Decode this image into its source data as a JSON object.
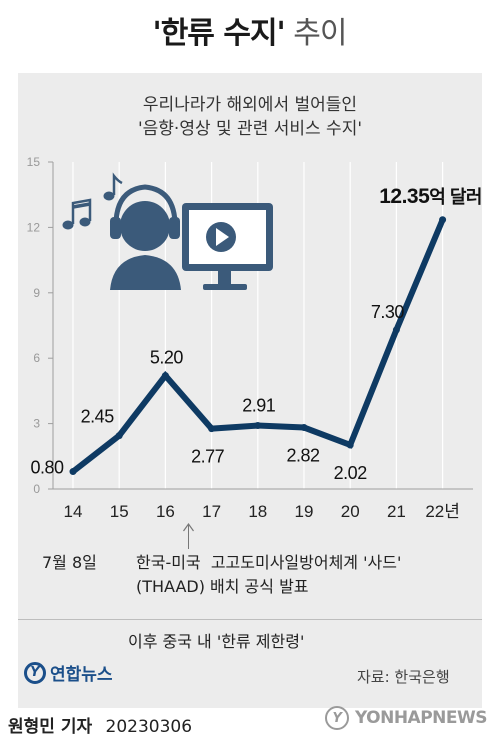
{
  "title": {
    "bold": "'한류 수지'",
    "light": "추이"
  },
  "chart_data": {
    "type": "line",
    "subtitle_lines": [
      "우리나라가 해외에서 벌어들인",
      "'음향·영상 및 관련 서비스 수지'"
    ],
    "categories": [
      "14",
      "15",
      "16",
      "17",
      "18",
      "19",
      "20",
      "21",
      "22년"
    ],
    "values": [
      0.8,
      2.45,
      5.2,
      2.77,
      2.91,
      2.82,
      2.02,
      7.3,
      12.35
    ],
    "value_labels": [
      "0.80",
      "2.45",
      "5.20",
      "2.77",
      "2.91",
      "2.82",
      "2.02",
      "7.30",
      "12.35"
    ],
    "last_value_unit": "억 달러",
    "y_ticks": [
      0,
      3,
      6,
      9,
      12,
      15
    ],
    "ylim": [
      0,
      15
    ],
    "grid": "vertical",
    "line_color": "#0e3a63",
    "annotation": {
      "date": "7월 8일",
      "lines": [
        "한국-미국  고고도미사일방어체계 '사드'",
        "(THAAD) 배치 공식 발표"
      ],
      "followup": "이후 중국 내 '한류 제한령'"
    }
  },
  "source": "자료: 한국은행",
  "logo_text": "연합뉴스",
  "byline": {
    "name": "원형민 기자",
    "date": "20230306"
  },
  "watermark": "YONHAPNEWS",
  "colors": {
    "panel": "#ececec",
    "line": "#0e3a63",
    "icon": "#3b5a7a"
  }
}
